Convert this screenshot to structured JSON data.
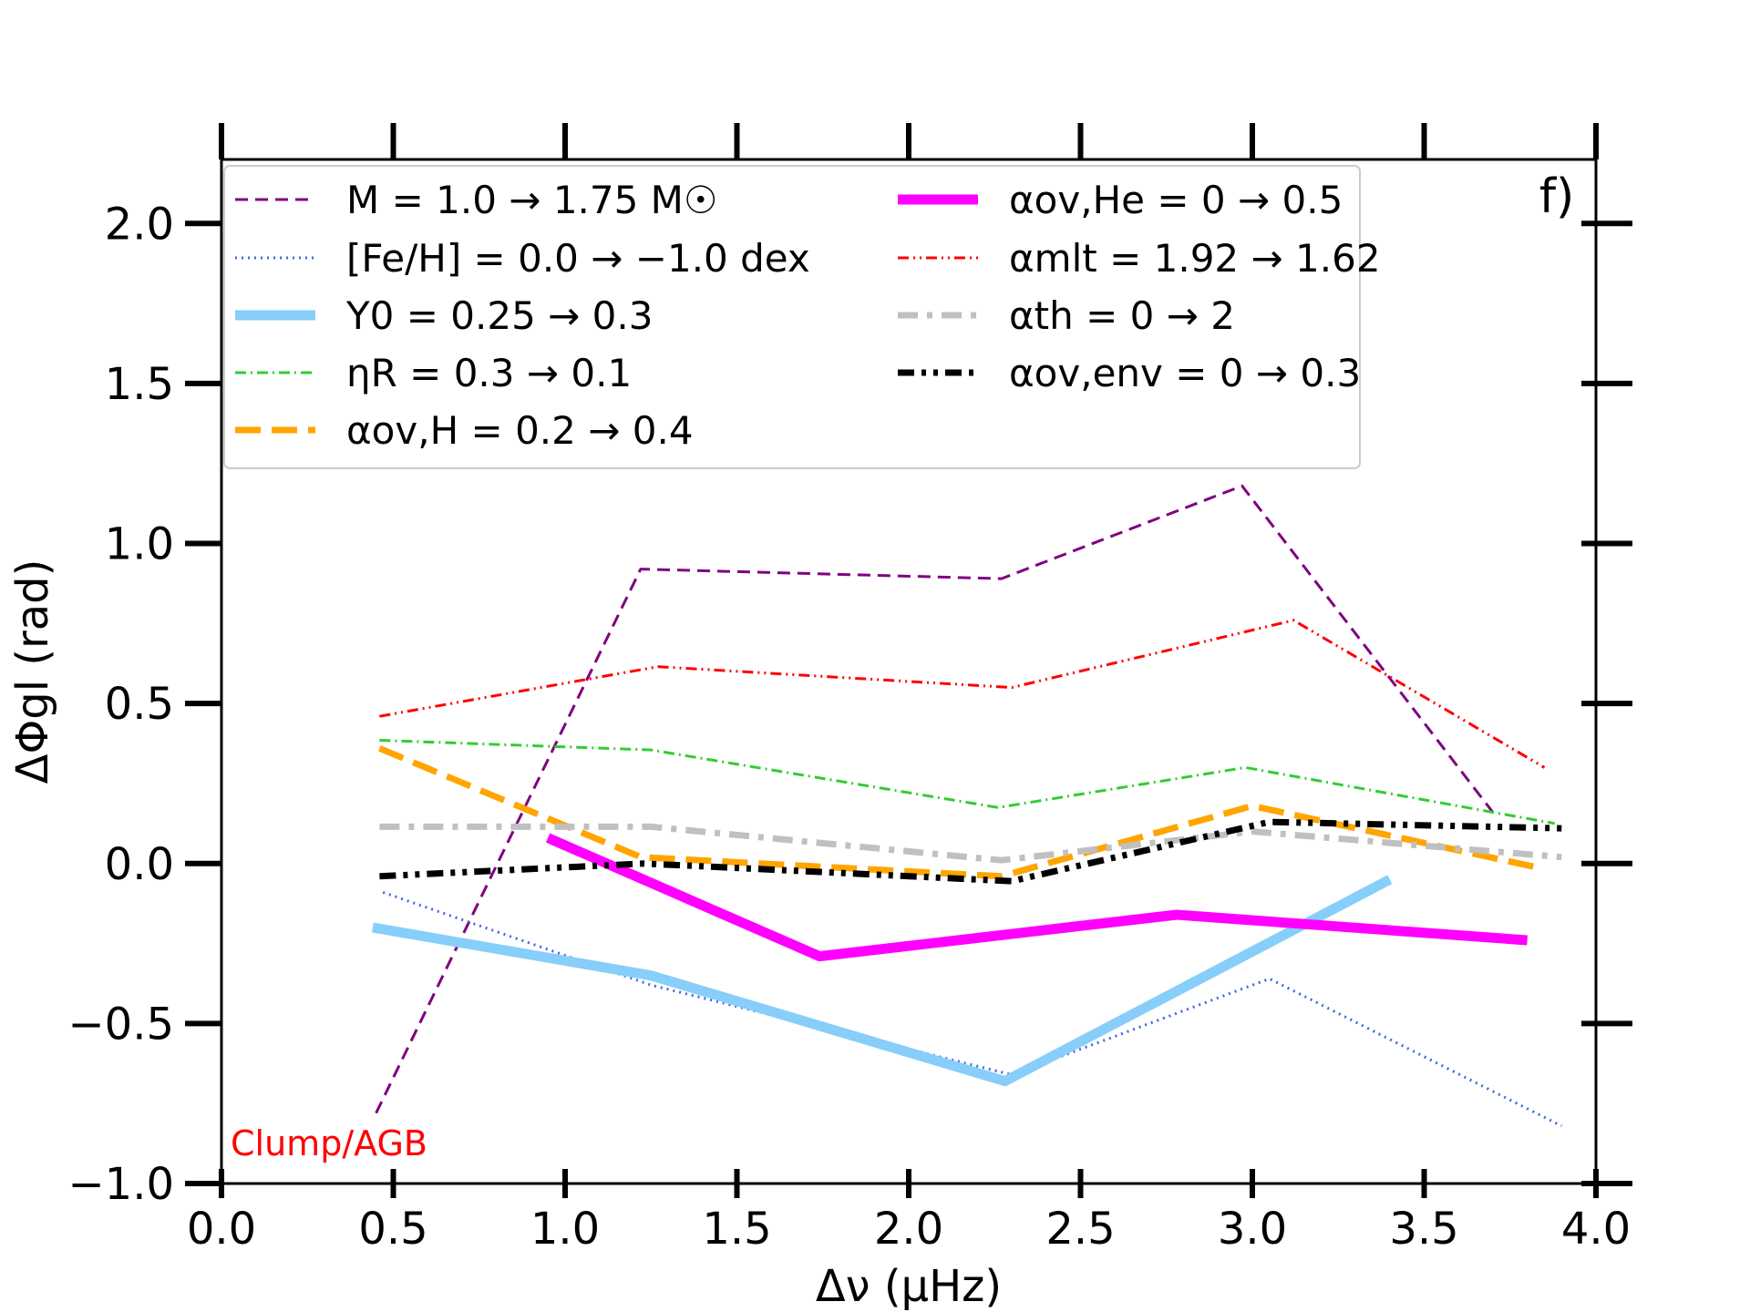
{
  "chart_data": {
    "type": "line",
    "title": "",
    "panel_label": "f)",
    "annotation": "Clump/AGB",
    "xlabel": "Δν (μHz)",
    "ylabel": "ΔΦgl (rad)",
    "xlim": [
      0.0,
      4.0
    ],
    "ylim": [
      -1.0,
      2.2
    ],
    "xticks": [
      "0.0",
      "0.5",
      "1.0",
      "1.5",
      "2.0",
      "2.5",
      "3.0",
      "3.5",
      "4.0"
    ],
    "yticks": [
      "−1.0",
      "−0.5",
      "0.0",
      "0.5",
      "1.0",
      "1.5",
      "2.0"
    ],
    "legend_location": "top",
    "series": [
      {
        "name": "M = 1.0 → 1.75 M☉",
        "color": "#800080",
        "style": "dashed-thin",
        "x": [
          0.45,
          1.22,
          2.27,
          2.97,
          3.7
        ],
        "y": [
          -0.78,
          0.92,
          0.89,
          1.18,
          0.16
        ]
      },
      {
        "name": "[Fe/H] = 0.0 → −1.0 dex",
        "color": "#4169e1",
        "style": "dotted",
        "x": [
          0.47,
          1.25,
          2.3,
          3.05,
          3.9
        ],
        "y": [
          -0.09,
          -0.38,
          -0.66,
          -0.36,
          -0.82
        ]
      },
      {
        "name": "Y0 = 0.25 → 0.3",
        "color": "#87cefa",
        "style": "solid-thick",
        "x": [
          0.44,
          1.25,
          2.28,
          3.4
        ],
        "y": [
          -0.2,
          -0.35,
          -0.68,
          -0.05
        ]
      },
      {
        "name": "ηR = 0.3 → 0.1",
        "color": "#32cd32",
        "style": "dashdot-thin",
        "x": [
          0.46,
          1.25,
          2.26,
          2.98,
          3.88
        ],
        "y": [
          0.385,
          0.355,
          0.175,
          0.3,
          0.125
        ]
      },
      {
        "name": "αov,H = 0.2 → 0.4",
        "color": "#ffa500",
        "style": "dashed-thick",
        "x": [
          0.46,
          1.22,
          2.27,
          3.0,
          3.82
        ],
        "y": [
          0.36,
          0.02,
          -0.04,
          0.18,
          -0.01
        ]
      },
      {
        "name": "αov,He = 0 → 0.5",
        "color": "#ff00ff",
        "style": "solid-thick",
        "x": [
          0.95,
          1.74,
          2.78,
          3.8
        ],
        "y": [
          0.08,
          -0.29,
          -0.16,
          -0.24
        ]
      },
      {
        "name": "αmlt = 1.92 → 1.62",
        "color": "#ff0000",
        "style": "dashdotdot-thin",
        "x": [
          0.46,
          1.27,
          2.3,
          3.12,
          3.85
        ],
        "y": [
          0.46,
          0.615,
          0.55,
          0.76,
          0.3
        ]
      },
      {
        "name": "αth = 0 → 2",
        "color": "#c0c0c0",
        "style": "dashdot-thick",
        "x": [
          0.46,
          1.25,
          2.27,
          3.0,
          3.9
        ],
        "y": [
          0.115,
          0.115,
          0.01,
          0.1,
          0.02
        ]
      },
      {
        "name": "αov,env = 0 → 0.3",
        "color": "#000000",
        "style": "dashdotdot-thick",
        "x": [
          0.46,
          1.23,
          2.3,
          3.05,
          3.9
        ],
        "y": [
          -0.04,
          0.0,
          -0.055,
          0.13,
          0.11
        ]
      }
    ]
  }
}
